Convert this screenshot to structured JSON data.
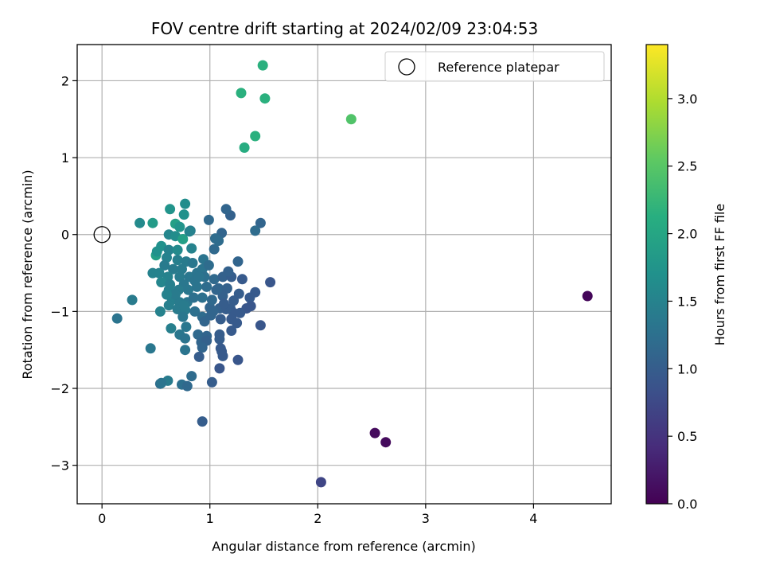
{
  "chart_data": {
    "type": "scatter",
    "title": "FOV centre drift starting at 2024/02/09 23:04:53",
    "xlabel": "Angular distance from reference (arcmin)",
    "ylabel": "Rotation from reference (arcmin)",
    "xlim": [
      -0.23,
      4.72
    ],
    "ylim": [
      -3.5,
      2.47
    ],
    "xticks": [
      0,
      1,
      2,
      3,
      4
    ],
    "yticks": [
      -3,
      -2,
      -1,
      0,
      1,
      2
    ],
    "grid": true,
    "legend": {
      "placement": "top-right",
      "entries": [
        "Reference platepar"
      ]
    },
    "reference_point": {
      "x": 0,
      "y": 0,
      "marker": "open-circle"
    },
    "colorbar": {
      "label": "Hours from first FF file",
      "colormap": "viridis",
      "range": [
        0.0,
        3.4
      ],
      "ticks": [
        0.0,
        0.5,
        1.0,
        1.5,
        2.0,
        2.5,
        3.0
      ]
    },
    "series": [
      {
        "points": [
          [
            4.5,
            -0.8,
            0.05
          ],
          [
            2.53,
            -2.58,
            0.1
          ],
          [
            2.63,
            -2.7,
            0.1
          ],
          [
            2.03,
            -3.22,
            0.7
          ],
          [
            2.31,
            1.5,
            2.45
          ],
          [
            1.49,
            2.2,
            2.15
          ],
          [
            1.29,
            1.84,
            2.15
          ],
          [
            1.51,
            1.77,
            2.15
          ],
          [
            1.42,
            1.28,
            2.15
          ],
          [
            1.32,
            1.13,
            2.1
          ],
          [
            0.77,
            0.4,
            1.65
          ],
          [
            0.63,
            0.33,
            1.75
          ],
          [
            0.76,
            0.26,
            1.7
          ],
          [
            0.35,
            0.15,
            1.6
          ],
          [
            0.47,
            0.15,
            1.85
          ],
          [
            0.68,
            0.14,
            1.9
          ],
          [
            0.72,
            0.1,
            1.75
          ],
          [
            0.62,
            0.0,
            1.55
          ],
          [
            0.68,
            -0.02,
            1.65
          ],
          [
            0.75,
            -0.06,
            1.9
          ],
          [
            0.82,
            0.05,
            1.4
          ],
          [
            0.55,
            -0.15,
            1.7
          ],
          [
            0.5,
            -0.27,
            1.9
          ],
          [
            0.51,
            -0.22,
            1.7
          ],
          [
            0.62,
            -0.2,
            1.5
          ],
          [
            0.7,
            -0.2,
            1.6
          ],
          [
            0.83,
            -0.18,
            1.5
          ],
          [
            0.6,
            -0.3,
            1.5
          ],
          [
            0.7,
            -0.33,
            1.45
          ],
          [
            0.78,
            -0.35,
            1.4
          ],
          [
            0.84,
            -0.37,
            1.35
          ],
          [
            0.94,
            -0.32,
            1.3
          ],
          [
            0.58,
            -0.4,
            1.4
          ],
          [
            0.66,
            -0.45,
            1.4
          ],
          [
            0.74,
            -0.45,
            1.4
          ],
          [
            0.53,
            -0.5,
            1.5
          ],
          [
            0.47,
            -0.5,
            1.5
          ],
          [
            0.61,
            -0.55,
            1.5
          ],
          [
            0.72,
            -0.55,
            1.4
          ],
          [
            0.81,
            -0.55,
            1.35
          ],
          [
            0.88,
            -0.5,
            1.3
          ],
          [
            0.93,
            -0.45,
            1.3
          ],
          [
            0.99,
            -0.4,
            1.2
          ],
          [
            0.55,
            -0.62,
            1.55
          ],
          [
            0.63,
            -0.65,
            1.45
          ],
          [
            0.76,
            -0.65,
            1.35
          ],
          [
            0.86,
            -0.6,
            1.3
          ],
          [
            0.95,
            -0.55,
            1.25
          ],
          [
            1.04,
            -0.58,
            1.15
          ],
          [
            1.12,
            -0.55,
            1.05
          ],
          [
            1.2,
            -0.55,
            1.0
          ],
          [
            1.26,
            -0.35,
            1.1
          ],
          [
            1.17,
            -0.48,
            1.05
          ],
          [
            0.62,
            -0.72,
            1.45
          ],
          [
            0.71,
            -0.72,
            1.4
          ],
          [
            0.8,
            -0.72,
            1.35
          ],
          [
            0.88,
            -0.68,
            1.3
          ],
          [
            0.97,
            -0.68,
            1.2
          ],
          [
            1.08,
            -0.7,
            1.1
          ],
          [
            1.16,
            -0.7,
            1.05
          ],
          [
            1.27,
            -0.77,
            1.0
          ],
          [
            1.3,
            -0.58,
            0.95
          ],
          [
            1.42,
            -0.75,
            0.95
          ],
          [
            1.37,
            -0.82,
            0.95
          ],
          [
            1.56,
            -0.62,
            0.9
          ],
          [
            1.47,
            0.15,
            1.1
          ],
          [
            1.42,
            0.05,
            1.2
          ],
          [
            1.19,
            0.25,
            1.05
          ],
          [
            1.15,
            0.33,
            1.1
          ],
          [
            0.99,
            0.19,
            1.15
          ],
          [
            1.11,
            0.02,
            1.1
          ],
          [
            1.05,
            -0.05,
            1.2
          ],
          [
            1.04,
            -0.19,
            1.15
          ],
          [
            1.08,
            -0.08,
            1.2
          ],
          [
            0.81,
            0.04,
            1.5
          ],
          [
            0.65,
            -0.85,
            1.45
          ],
          [
            0.72,
            -0.88,
            1.4
          ],
          [
            0.79,
            -0.88,
            1.35
          ],
          [
            0.93,
            -0.82,
            1.25
          ],
          [
            1.12,
            -0.8,
            1.05
          ],
          [
            1.22,
            -0.86,
            1.0
          ],
          [
            1.34,
            -0.96,
            0.9
          ],
          [
            1.38,
            -0.93,
            0.9
          ],
          [
            0.62,
            -0.92,
            1.45
          ],
          [
            0.7,
            -0.97,
            1.4
          ],
          [
            0.77,
            -0.98,
            1.4
          ],
          [
            0.86,
            -1.0,
            1.25
          ],
          [
            1.0,
            -0.95,
            1.1
          ],
          [
            1.09,
            -0.96,
            1.05
          ],
          [
            1.19,
            -0.96,
            1.0
          ],
          [
            1.28,
            -1.02,
            0.95
          ],
          [
            1.22,
            -1.02,
            0.95
          ],
          [
            0.54,
            -1.0,
            1.5
          ],
          [
            0.75,
            -1.07,
            1.35
          ],
          [
            0.93,
            -1.07,
            1.2
          ],
          [
            1.01,
            -1.05,
            1.1
          ],
          [
            1.1,
            -1.1,
            1.0
          ],
          [
            1.2,
            -1.1,
            0.95
          ],
          [
            1.25,
            -1.15,
            0.95
          ],
          [
            0.95,
            -1.13,
            1.1
          ],
          [
            0.78,
            -1.2,
            1.35
          ],
          [
            0.64,
            -1.22,
            1.45
          ],
          [
            0.89,
            -1.3,
            1.15
          ],
          [
            0.97,
            -1.32,
            1.1
          ],
          [
            1.09,
            -1.3,
            1.0
          ],
          [
            1.2,
            -1.25,
            0.95
          ],
          [
            1.47,
            -1.18,
            0.9
          ],
          [
            0.72,
            -1.3,
            1.35
          ],
          [
            0.77,
            -1.35,
            1.3
          ],
          [
            0.92,
            -1.4,
            1.1
          ],
          [
            0.97,
            -1.38,
            1.05
          ],
          [
            1.09,
            -1.36,
            1.0
          ],
          [
            1.1,
            -1.48,
            0.95
          ],
          [
            0.45,
            -1.48,
            1.35
          ],
          [
            0.77,
            -1.5,
            1.3
          ],
          [
            0.93,
            -1.47,
            1.1
          ],
          [
            1.11,
            -1.52,
            0.95
          ],
          [
            1.12,
            -1.58,
            0.95
          ],
          [
            0.9,
            -1.59,
            1.0
          ],
          [
            1.26,
            -1.63,
            0.9
          ],
          [
            1.09,
            -1.74,
            0.9
          ],
          [
            0.61,
            -1.9,
            1.4
          ],
          [
            0.54,
            -1.94,
            1.2
          ],
          [
            0.74,
            -1.95,
            1.25
          ],
          [
            0.79,
            -1.97,
            1.15
          ],
          [
            0.83,
            -1.84,
            1.2
          ],
          [
            0.55,
            -1.93,
            1.3
          ],
          [
            1.02,
            -1.92,
            1.0
          ],
          [
            0.93,
            -2.43,
            1.0
          ],
          [
            0.14,
            -1.09,
            1.3
          ],
          [
            0.28,
            -0.85,
            1.4
          ],
          [
            0.68,
            -0.78,
            1.4
          ],
          [
            0.6,
            -0.78,
            1.5
          ],
          [
            0.76,
            -0.92,
            1.4
          ],
          [
            0.85,
            -0.82,
            1.25
          ],
          [
            1.02,
            -0.85,
            1.15
          ],
          [
            0.9,
            -0.55,
            1.3
          ],
          [
            1.15,
            -0.97,
            1.0
          ],
          [
            1.13,
            -0.9,
            1.0
          ],
          [
            1.03,
            -1.0,
            1.1
          ],
          [
            1.06,
            -0.72,
            1.1
          ]
        ]
      }
    ]
  }
}
